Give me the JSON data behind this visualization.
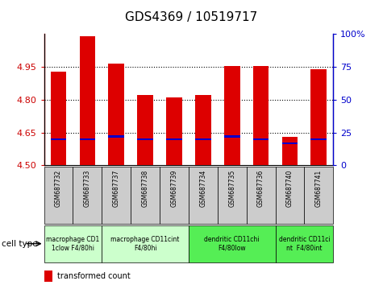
{
  "title": "GDS4369 / 10519717",
  "samples": [
    "GSM687732",
    "GSM687733",
    "GSM687737",
    "GSM687738",
    "GSM687739",
    "GSM687734",
    "GSM687735",
    "GSM687736",
    "GSM687740",
    "GSM687741"
  ],
  "red_values": [
    4.93,
    5.09,
    4.965,
    4.82,
    4.81,
    4.82,
    4.955,
    4.955,
    4.63,
    4.94
  ],
  "blue_percentile": [
    20,
    20,
    22,
    20,
    20,
    20,
    22,
    20,
    17,
    20
  ],
  "ylim": [
    4.5,
    5.1
  ],
  "y2lim": [
    0,
    100
  ],
  "yticks": [
    4.5,
    4.65,
    4.8,
    4.95
  ],
  "y2ticks": [
    0,
    25,
    50,
    75,
    100
  ],
  "y2tick_labels": [
    "0",
    "25",
    "50",
    "75",
    "100%"
  ],
  "bar_width": 0.55,
  "blue_bar_height": 0.008,
  "cell_type_groups": [
    {
      "label": "macrophage CD1\n1clow F4/80hi",
      "start": 0,
      "end": 2,
      "color": "#ccffcc"
    },
    {
      "label": "macrophage CD11cint\nF4/80hi",
      "start": 2,
      "end": 5,
      "color": "#ccffcc"
    },
    {
      "label": "dendritic CD11chi\nF4/80low",
      "start": 5,
      "end": 8,
      "color": "#55ee55"
    },
    {
      "label": "dendritic CD11ci\nnt  F4/80int",
      "start": 8,
      "end": 10,
      "color": "#55ee55"
    }
  ],
  "red_color": "#dd0000",
  "blue_color": "#0000cc",
  "bg_color": "#ffffff",
  "left_axis_color": "#cc0000",
  "right_axis_color": "#0000cc",
  "tick_bg": "#cccccc"
}
